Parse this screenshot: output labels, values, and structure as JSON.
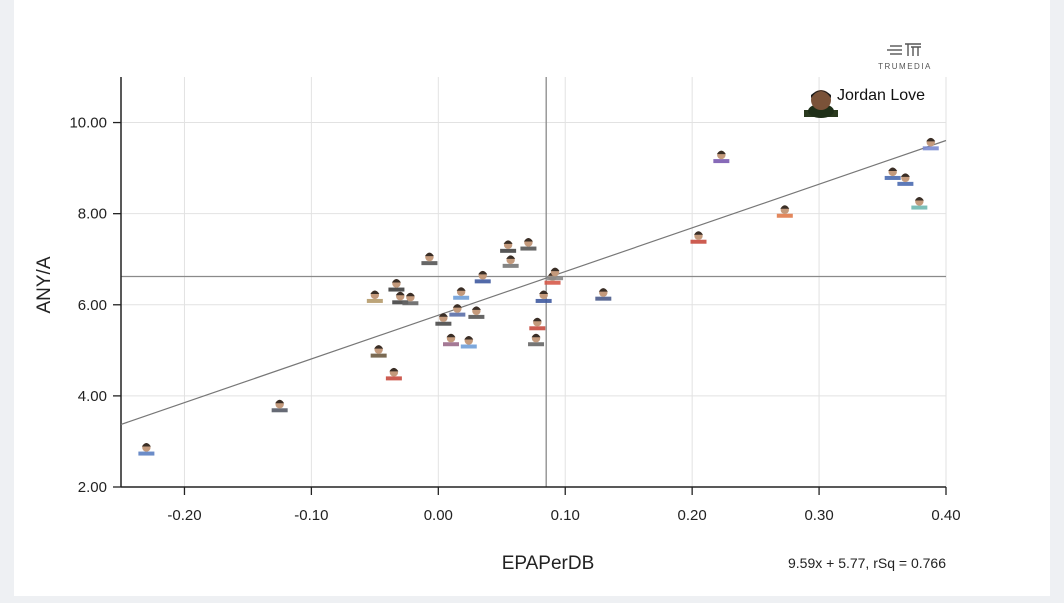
{
  "chart_data": {
    "type": "scatter",
    "title": "",
    "xlabel": "EPAPerDB",
    "ylabel": "ANY/A",
    "xlim": [
      -0.25,
      0.4
    ],
    "ylim": [
      2.0,
      11.0
    ],
    "x_ticks": [
      -0.2,
      -0.1,
      0.0,
      0.1,
      0.2,
      0.3,
      0.4
    ],
    "x_tick_labels": [
      "-0.20",
      "-0.10",
      "0.00",
      "0.10",
      "0.20",
      "0.30",
      "0.40"
    ],
    "y_ticks": [
      2.0,
      4.0,
      6.0,
      8.0,
      10.0
    ],
    "y_tick_labels": [
      "2.00",
      "4.00",
      "6.00",
      "8.00",
      "10.00"
    ],
    "grid": true,
    "mean_x": 0.085,
    "mean_y": 6.62,
    "trendline": {
      "slope": 9.59,
      "intercept": 5.77,
      "label": "9.59x + 5.77, rSq = 0.766"
    },
    "highlight": {
      "name": "Jordan Love"
    },
    "brand": "TRUMEDIA",
    "points": [
      {
        "x": -0.23,
        "y": 2.8,
        "color": "#5b7fc2"
      },
      {
        "x": -0.125,
        "y": 3.75,
        "color": "#555a66"
      },
      {
        "x": -0.047,
        "y": 4.95,
        "color": "#6b5a40"
      },
      {
        "x": -0.035,
        "y": 4.45,
        "color": "#c84a3e"
      },
      {
        "x": -0.05,
        "y": 6.15,
        "color": "#b59a6a"
      },
      {
        "x": -0.033,
        "y": 6.4,
        "color": "#3d3d3d"
      },
      {
        "x": -0.03,
        "y": 6.12,
        "color": "#444444"
      },
      {
        "x": -0.022,
        "y": 6.1,
        "color": "#666666"
      },
      {
        "x": -0.007,
        "y": 6.98,
        "color": "#555555"
      },
      {
        "x": 0.004,
        "y": 5.65,
        "color": "#4a4a4a"
      },
      {
        "x": 0.01,
        "y": 5.2,
        "color": "#9a6a8a"
      },
      {
        "x": 0.015,
        "y": 5.85,
        "color": "#5b6fa8"
      },
      {
        "x": 0.018,
        "y": 6.22,
        "color": "#6f9fd8"
      },
      {
        "x": 0.024,
        "y": 5.15,
        "color": "#6f9fd8"
      },
      {
        "x": 0.03,
        "y": 5.8,
        "color": "#555555"
      },
      {
        "x": 0.035,
        "y": 6.58,
        "color": "#3f5aa0"
      },
      {
        "x": 0.055,
        "y": 7.25,
        "color": "#444444"
      },
      {
        "x": 0.057,
        "y": 6.92,
        "color": "#777777"
      },
      {
        "x": 0.071,
        "y": 7.3,
        "color": "#555555"
      },
      {
        "x": 0.077,
        "y": 5.2,
        "color": "#666666"
      },
      {
        "x": 0.078,
        "y": 5.55,
        "color": "#c84a3e"
      },
      {
        "x": 0.083,
        "y": 6.15,
        "color": "#3f5aa0"
      },
      {
        "x": 0.09,
        "y": 6.55,
        "color": "#d65a4a"
      },
      {
        "x": 0.092,
        "y": 6.65,
        "color": "#888888"
      },
      {
        "x": 0.13,
        "y": 6.2,
        "color": "#4a5a8a"
      },
      {
        "x": 0.205,
        "y": 7.45,
        "color": "#c84a3e"
      },
      {
        "x": 0.223,
        "y": 9.22,
        "color": "#7a5ab0"
      },
      {
        "x": 0.273,
        "y": 8.02,
        "color": "#e07a4a"
      },
      {
        "x": 0.358,
        "y": 8.85,
        "color": "#4a6ab0"
      },
      {
        "x": 0.368,
        "y": 8.72,
        "color": "#4a6ab0"
      },
      {
        "x": 0.379,
        "y": 8.2,
        "color": "#6fb8b0"
      },
      {
        "x": 0.388,
        "y": 9.5,
        "color": "#7a8ad0"
      }
    ]
  }
}
